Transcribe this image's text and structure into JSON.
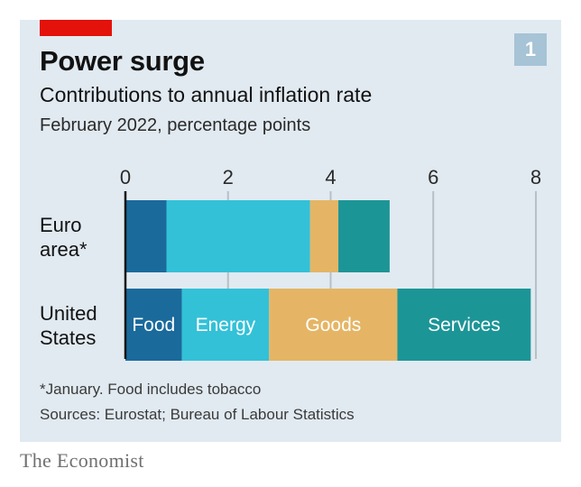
{
  "header": {
    "title": "Power surge",
    "subtitle": "Contributions to annual inflation rate",
    "units": "February 2022, percentage points",
    "chart_number": "1"
  },
  "footer": {
    "note": "*January. Food includes tobacco",
    "sources": "Sources: Eurostat; Bureau of Labour Statistics",
    "brand": "The Economist"
  },
  "colors": {
    "background": "#e1eaf1",
    "accent_red": "#e3120b",
    "food": "#1a6a9c",
    "energy": "#33c1d8",
    "goods": "#e5b565",
    "services": "#1c9597",
    "gridline": "#b7c0c6",
    "axis": "#121212"
  },
  "chart_data": {
    "type": "bar",
    "orientation": "horizontal",
    "stacked": true,
    "title": "Power surge",
    "subtitle": "Contributions to annual inflation rate",
    "units_label": "February 2022, percentage points",
    "categories": [
      "Euro area*",
      "United States"
    ],
    "category_lines": [
      [
        "Euro",
        "area*"
      ],
      [
        "United",
        "States"
      ]
    ],
    "series": [
      {
        "name": "Food",
        "color": "#1a6a9c",
        "values": [
          0.8,
          1.1
        ]
      },
      {
        "name": "Energy",
        "color": "#33c1d8",
        "values": [
          2.8,
          1.7
        ]
      },
      {
        "name": "Goods",
        "color": "#e5b565",
        "values": [
          0.55,
          2.5
        ]
      },
      {
        "name": "Services",
        "color": "#1c9597",
        "values": [
          1.0,
          2.6
        ]
      }
    ],
    "xlim": [
      0,
      8
    ],
    "xticks": [
      0,
      2,
      4,
      6,
      8
    ],
    "grid": true,
    "axis_position": "top",
    "legend": "inline labels on United States bar"
  }
}
